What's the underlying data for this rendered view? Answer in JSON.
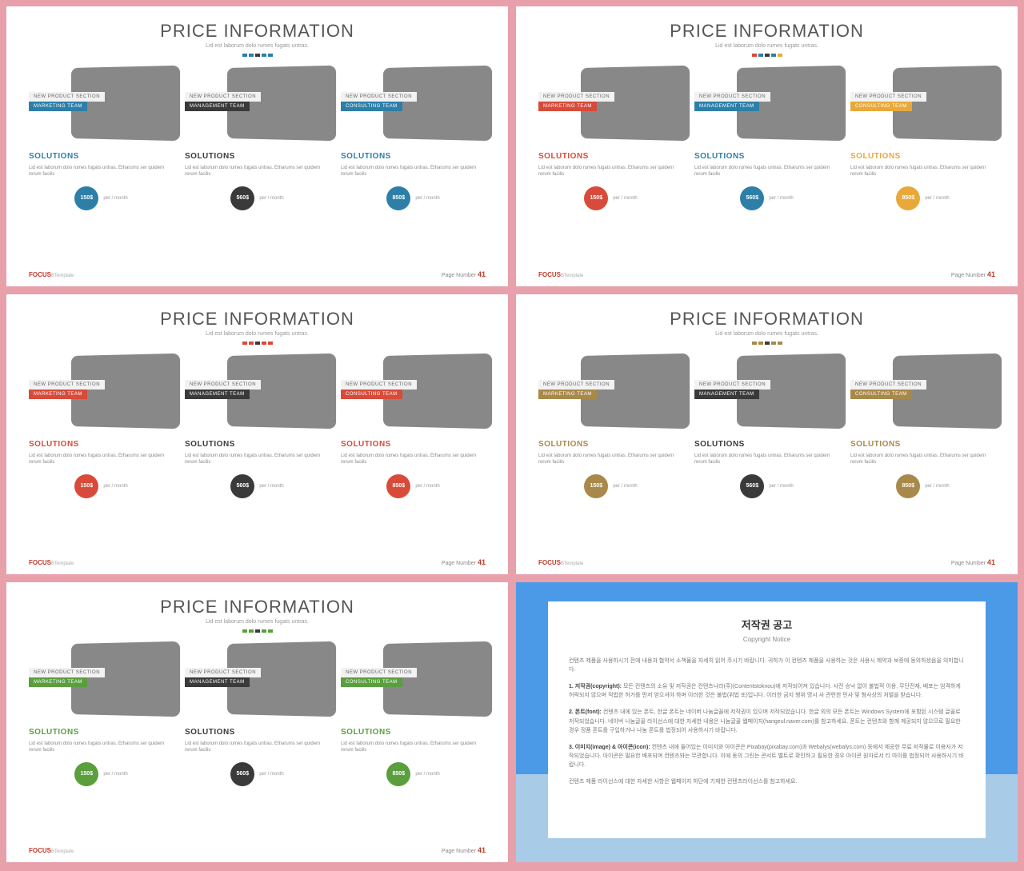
{
  "common": {
    "title": "PRICE INFORMATION",
    "subtitle": "Lid est laborum dolo rumes fugats untras.",
    "tag_top": "NEW PRODUCT SECTION",
    "solutions": "SOLUTIONS",
    "desc": "Lid est laborum dolo rumes fugats untras. Etharums ser quidem rerum facilis",
    "per": "per / month",
    "brand": "FOCUS",
    "brand_sub": "BTemplate",
    "page_label": "Page Number",
    "page_num": "41",
    "teams": [
      "MARKETING TEAM",
      "MANAGEMENT TEAM",
      "CONSULTING TEAM"
    ],
    "prices": [
      "150$",
      "560$",
      "850$"
    ],
    "mid_color": "#3a3a3a"
  },
  "slides": [
    {
      "accent": [
        "#2d7fa8",
        "#2d7fa8",
        "#3a3a3a",
        "#2d7fa8",
        "#2d7fa8"
      ],
      "col_colors": [
        "#2d7fa8",
        "#3a3a3a",
        "#2d7fa8"
      ]
    },
    {
      "accent": [
        "#d84b3a",
        "#2d7fa8",
        "#3a3a3a",
        "#2d7fa8",
        "#e8a93a"
      ],
      "col_colors": [
        "#d84b3a",
        "#2d7fa8",
        "#e8a93a"
      ]
    },
    {
      "accent": [
        "#d84b3a",
        "#d84b3a",
        "#3a3a3a",
        "#d84b3a",
        "#d84b3a"
      ],
      "col_colors": [
        "#d84b3a",
        "#3a3a3a",
        "#d84b3a"
      ]
    },
    {
      "accent": [
        "#a8894a",
        "#a8894a",
        "#3a3a3a",
        "#a8894a",
        "#a8894a"
      ],
      "col_colors": [
        "#a8894a",
        "#3a3a3a",
        "#a8894a"
      ]
    },
    {
      "accent": [
        "#5a9e3e",
        "#5a9e3e",
        "#3a3a3a",
        "#5a9e3e",
        "#5a9e3e"
      ],
      "col_colors": [
        "#5a9e3e",
        "#3a3a3a",
        "#5a9e3e"
      ]
    }
  ],
  "copyright": {
    "title": "저작권 공고",
    "sub": "Copyright Notice",
    "p0": "컨텐츠 제품을 사용하시기 전에 내용과 협약서 소책물을 자세히 읽어 주시기 바랍니다. 귀하가 이 컨텐츠 제품을 사용하는 것은 사용시 제약과 보증에 동의하셨음을 의미합니다.",
    "p1_label": "1. 저작권(copyright):",
    "p1": "모든 컨텐츠의 소유 및 저작권은 컨텐츠나라(주)(Contentstoknou)에 저작되어져 있습니다. 사전 승낙 없이 불법적 이용, 무단전재, 배포는 엄격하게 허락되지 않으며 적법한 허가를 먼저 얻으셔야 하며 이러한 것은 불법(위법 또)입니다. 이러한 금지 행위 명시 사 관련한 민사 및 형사상의 처벌을 받습니다.",
    "p2_label": "2. 폰트(font):",
    "p2": "컨텐츠 내에 있는 폰트, 한글 폰트는 네이버 나눔글꼴에 저작권이 있으며 저작되었습니다. 한글 외의 모든 폰트는 Windows System에 포함된 시스템 글꼴로 저작되었습니다. 네이버 나눔글꼴 라이선스에 대한 자세한 내용은 나눔글꼴 웹페이지(hangeul.naver.com)를 참고하세요. 폰트는 컨텐츠와 함께 제공되지 않으므로 필요한 경우 정품 폰트를 구입하거나 나눔 폰트를 법정되어 사용하시기 바랍니다.",
    "p3_label": "3. 이미지(image) & 아이콘(icon):",
    "p3": "컨텐츠 내에 들어있는 이미지와 아이콘은 Pixabay(pixabay.com)과 Webalys(webalys.com) 등에서 제공한 무료 저작물로 이용자가 저작되었습니다. 아이콘은 필요한 배포되며 컨텐츠와는 무관합니다. 이에 동의 그린는 콘서트 벨트로 확인하고 필요한 경우 아이콘 원자로서 티 마이를 법정되어 사용하시기 바랍니다.",
    "p4": "컨텐츠 제품 라이선스에 대한 자세한 사항은 웹페이지 하단에 기재한 컨텐츠라이선스를 참고하세요."
  }
}
